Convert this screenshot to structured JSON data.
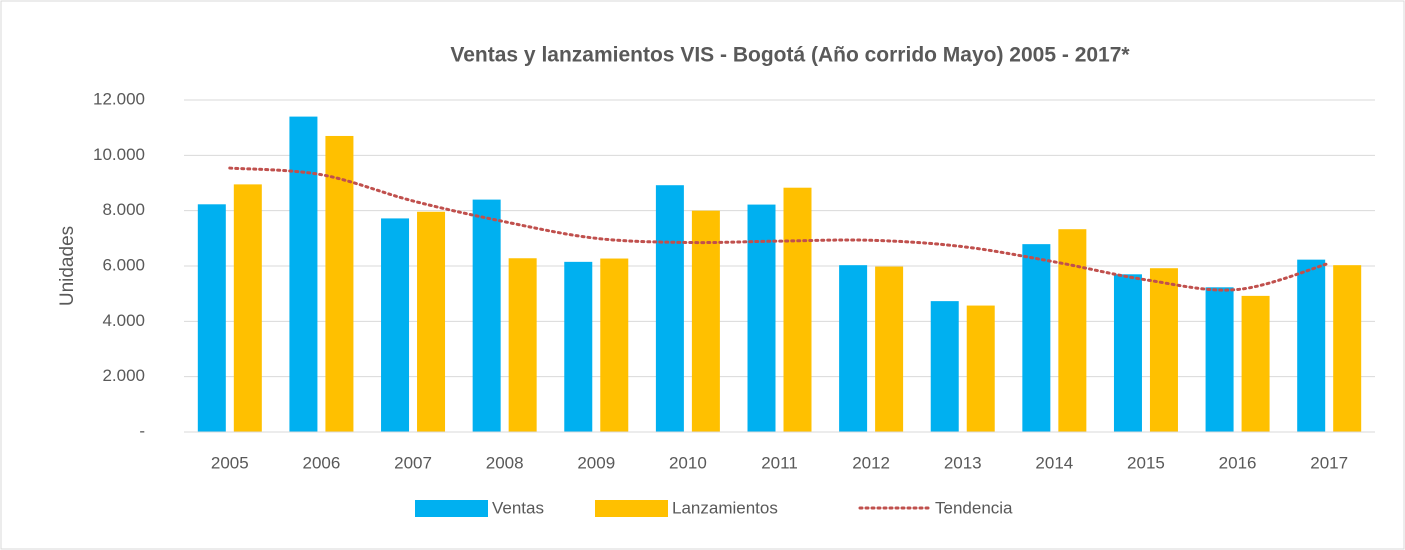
{
  "chart_data": {
    "type": "bar",
    "title": "Ventas y lanzamientos VIS - Bogotá (Año corrido Mayo) 2005 - 2017*",
    "y_label": "Unidades",
    "categories": [
      "2005",
      "2006",
      "2007",
      "2008",
      "2009",
      "2010",
      "2011",
      "2012",
      "2013",
      "2014",
      "2015",
      "2016",
      "2017"
    ],
    "series": [
      {
        "name": "Ventas",
        "color": "#00b0f0",
        "type": "bar",
        "values": [
          8230,
          11400,
          7720,
          8400,
          6150,
          8920,
          8220,
          6030,
          4730,
          6790,
          5700,
          5230,
          6230
        ]
      },
      {
        "name": "Lanzamientos",
        "color": "#ffc000",
        "type": "bar",
        "values": [
          8950,
          10700,
          7960,
          6280,
          6270,
          8000,
          8830,
          5980,
          4570,
          7330,
          5920,
          4920,
          6030
        ]
      },
      {
        "name": "Tendencia",
        "color": "#c0504d",
        "type": "line",
        "dotted": true,
        "values": [
          9540,
          9300,
          8350,
          7600,
          7000,
          6850,
          6900,
          6930,
          6700,
          6150,
          5500,
          5150,
          6100
        ]
      }
    ],
    "ylim": [
      0,
      12000
    ],
    "yticks": [
      {
        "value": 0,
        "label": "-"
      },
      {
        "value": 2000,
        "label": "2.000"
      },
      {
        "value": 4000,
        "label": "4.000"
      },
      {
        "value": 6000,
        "label": "6.000"
      },
      {
        "value": 8000,
        "label": "8.000"
      },
      {
        "value": 10000,
        "label": "10.000"
      },
      {
        "value": 12000,
        "label": "12.000"
      }
    ],
    "grid": true,
    "legend": "bottom"
  }
}
